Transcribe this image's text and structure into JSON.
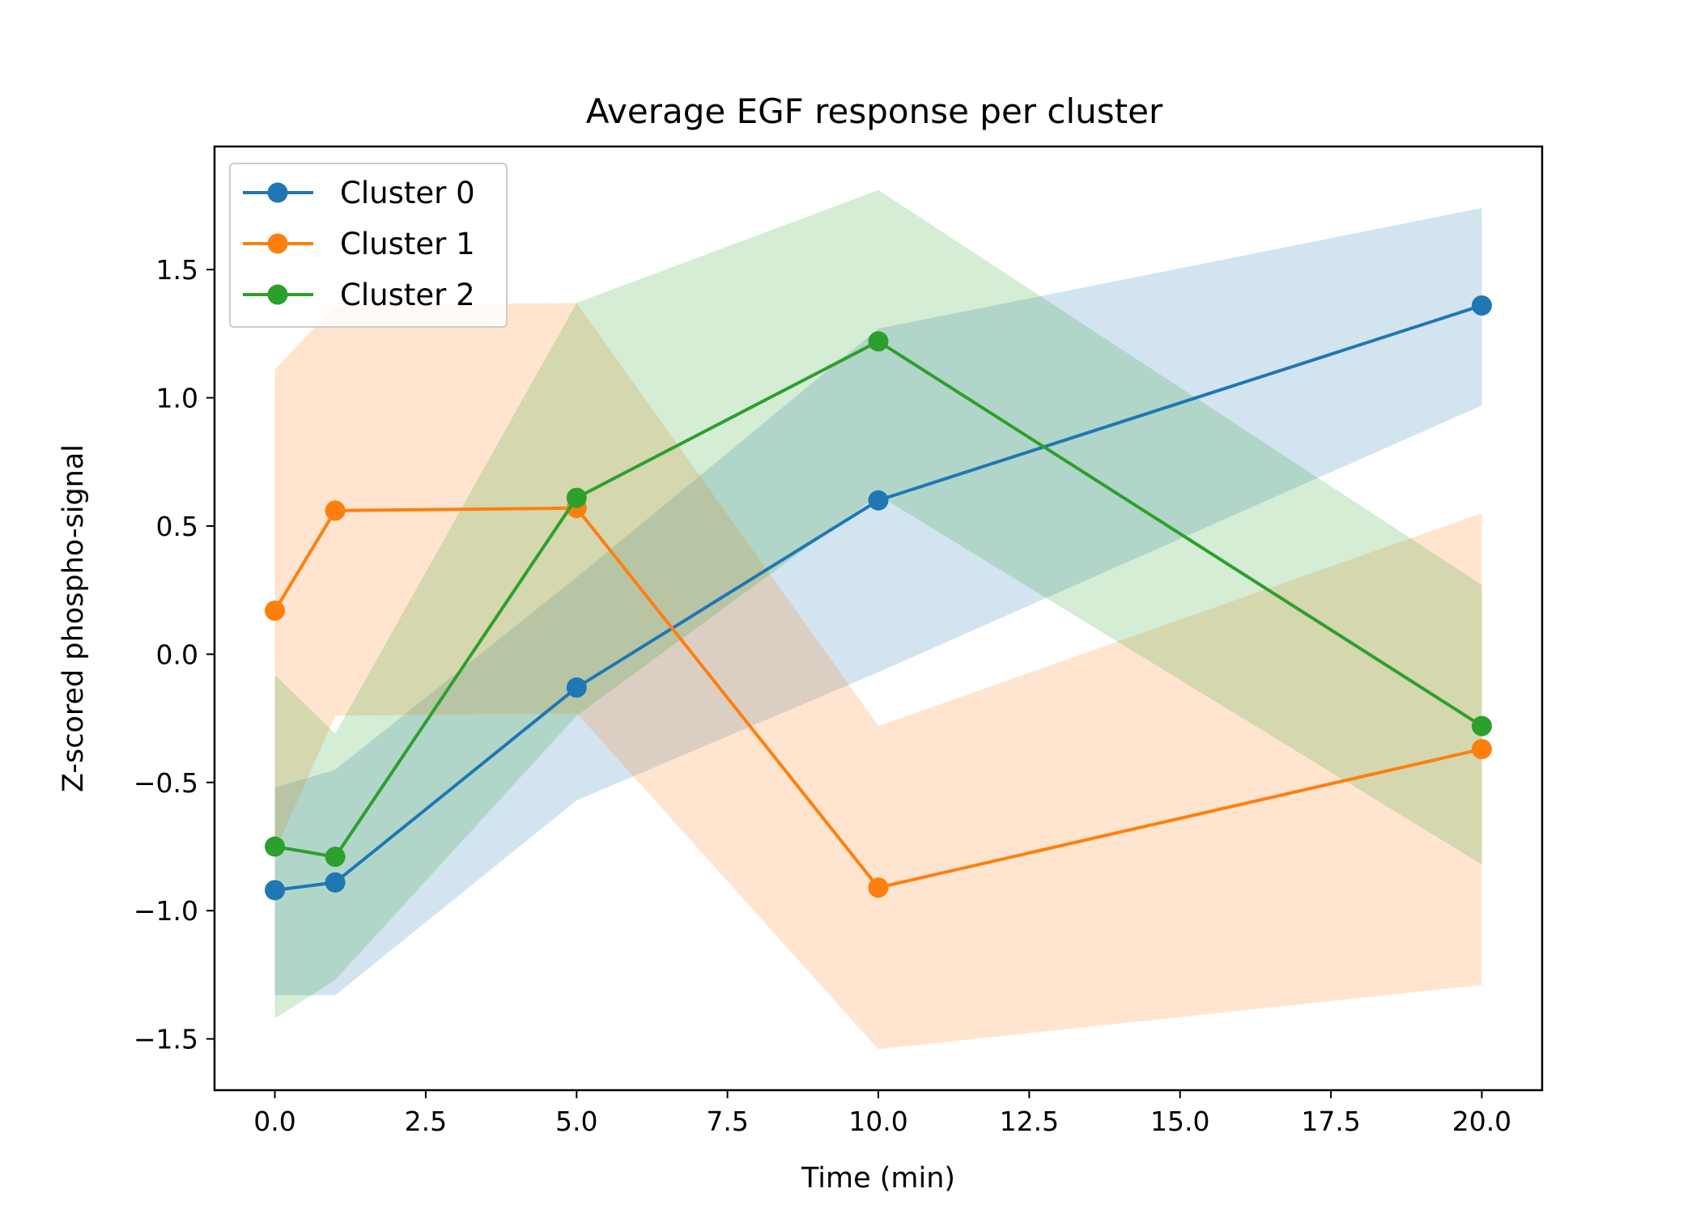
{
  "chart_data": {
    "type": "line",
    "title": "Average EGF response per cluster",
    "xlabel": "Time (min)",
    "ylabel": "Z-scored phospho-signal",
    "x": [
      0,
      1,
      5,
      10,
      20
    ],
    "xlim": [
      -1,
      21
    ],
    "ylim": [
      -1.7,
      1.98
    ],
    "xticks": [
      0.0,
      2.5,
      5.0,
      7.5,
      10.0,
      12.5,
      15.0,
      17.5,
      20.0
    ],
    "xtick_labels": [
      "0.0",
      "2.5",
      "5.0",
      "7.5",
      "10.0",
      "12.5",
      "15.0",
      "17.5",
      "20.0"
    ],
    "yticks": [
      -1.5,
      -1.0,
      -0.5,
      0.0,
      0.5,
      1.0,
      1.5
    ],
    "ytick_labels": [
      "−1.5",
      "−1.0",
      "−0.5",
      "0.0",
      "0.5",
      "1.0",
      "1.5"
    ],
    "grid": false,
    "legend_position": "top-left",
    "series": [
      {
        "name": "Cluster 0",
        "color": "#1f77b4",
        "values": [
          -0.92,
          -0.89,
          -0.13,
          0.6,
          1.36
        ],
        "band_low": [
          -1.33,
          -1.33,
          -0.57,
          -0.07,
          0.97
        ],
        "band_high": [
          -0.52,
          -0.45,
          0.3,
          1.27,
          1.74
        ]
      },
      {
        "name": "Cluster 1",
        "color": "#ff7f0e",
        "values": [
          0.17,
          0.56,
          0.57,
          -0.91,
          -0.37
        ],
        "band_low": [
          -0.77,
          -0.24,
          -0.23,
          -1.54,
          -1.29
        ],
        "band_high": [
          1.11,
          1.36,
          1.37,
          -0.28,
          0.55
        ]
      },
      {
        "name": "Cluster 2",
        "color": "#2ca02c",
        "values": [
          -0.75,
          -0.79,
          0.61,
          1.22,
          -0.28
        ],
        "band_low": [
          -1.42,
          -1.27,
          -0.24,
          0.62,
          -0.82
        ],
        "band_high": [
          -0.08,
          -0.31,
          1.37,
          1.81,
          0.27
        ]
      }
    ]
  }
}
